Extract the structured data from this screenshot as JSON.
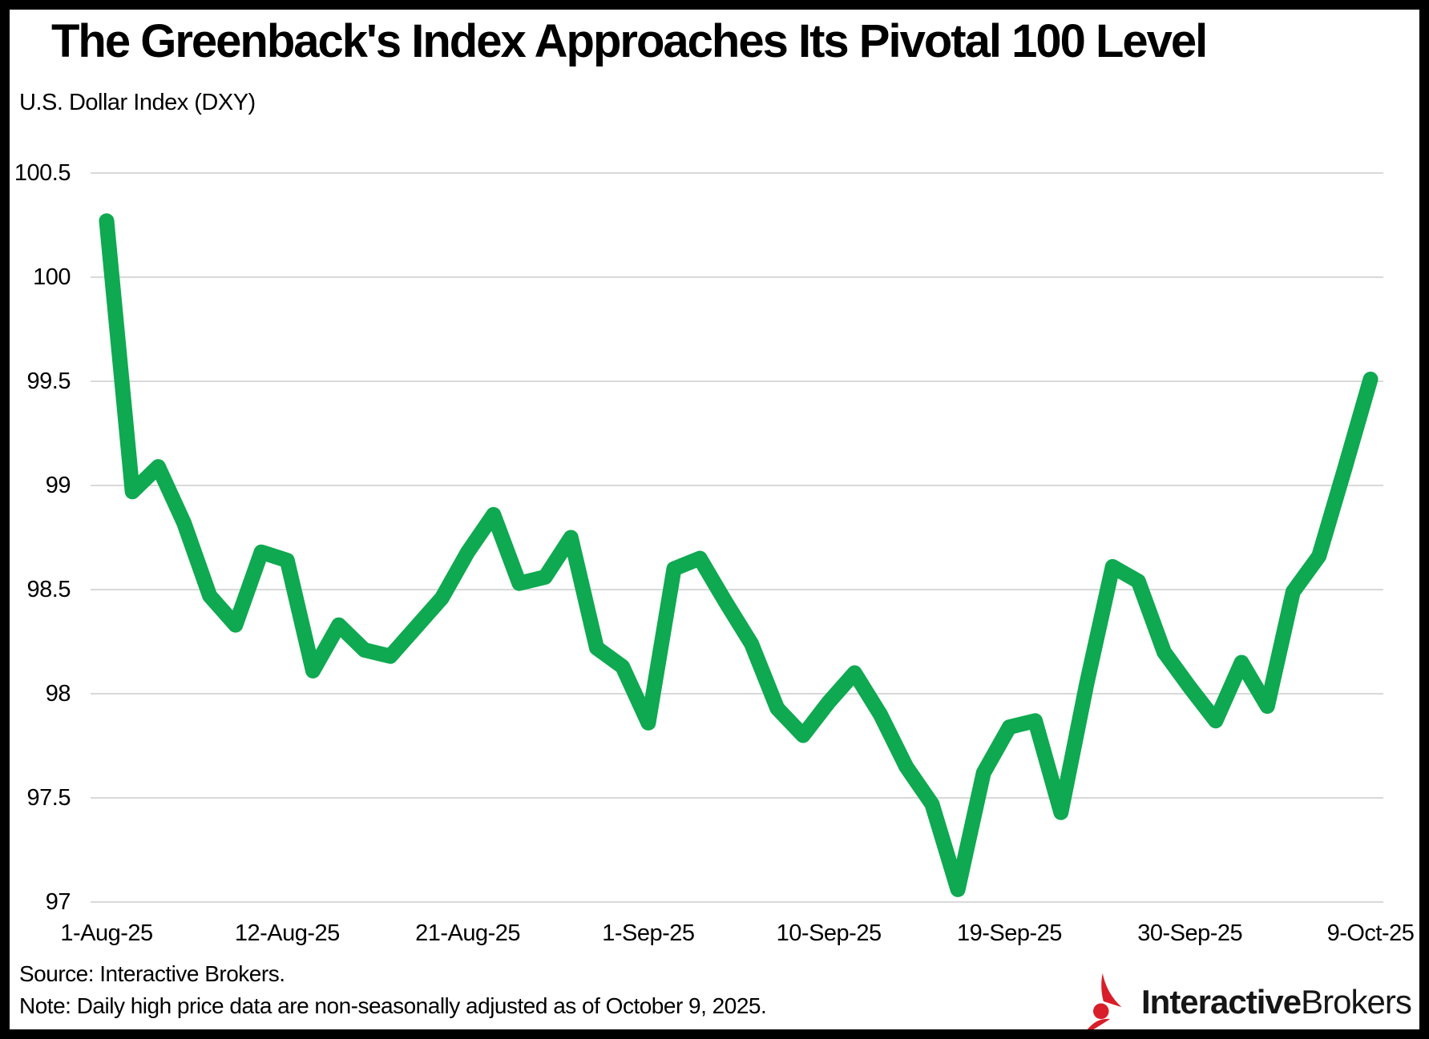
{
  "header": {
    "title": "The Greenback's Index Approaches Its Pivotal 100 Level",
    "subtitle": "U.S. Dollar Index (DXY)"
  },
  "footer": {
    "source": "Source: Interactive Brokers.",
    "note": "Note: Daily high price data are non-seasonally  adjusted as of October 9, 2025."
  },
  "logo": {
    "icon": "interactive-brokers-mark-icon",
    "brand_bold": "Interactive",
    "brand_regular": "Brokers",
    "mark_color": "#d81e2a",
    "text_color": "#161616"
  },
  "chart_data": {
    "type": "line",
    "title": "The Greenback's Index Approaches Its Pivotal 100 Level",
    "ylabel": "U.S. Dollar Index (DXY)",
    "xlabel": "",
    "ylim": [
      97,
      100.5
    ],
    "y_ticks": [
      100.5,
      100,
      99.5,
      99,
      98.5,
      98,
      97.5,
      97
    ],
    "x_tick_indices": [
      0,
      7,
      14,
      21,
      28,
      35,
      42,
      49
    ],
    "x_tick_labels": [
      "1-Aug-25",
      "12-Aug-25",
      "21-Aug-25",
      "1-Sep-25",
      "10-Sep-25",
      "19-Sep-25",
      "30-Sep-25",
      "9-Oct-25"
    ],
    "grid": true,
    "legend_position": "none",
    "line_color": "#0ea950",
    "gridline_color": "#d9d9d9",
    "series": [
      {
        "name": "DXY daily high",
        "x": [
          "1-Aug-25",
          "4-Aug-25",
          "5-Aug-25",
          "6-Aug-25",
          "7-Aug-25",
          "8-Aug-25",
          "11-Aug-25",
          "12-Aug-25",
          "13-Aug-25",
          "14-Aug-25",
          "15-Aug-25",
          "18-Aug-25",
          "19-Aug-25",
          "20-Aug-25",
          "21-Aug-25",
          "22-Aug-25",
          "25-Aug-25",
          "26-Aug-25",
          "27-Aug-25",
          "28-Aug-25",
          "29-Aug-25",
          "1-Sep-25",
          "2-Sep-25",
          "3-Sep-25",
          "4-Sep-25",
          "5-Sep-25",
          "8-Sep-25",
          "9-Sep-25",
          "10-Sep-25",
          "11-Sep-25",
          "12-Sep-25",
          "15-Sep-25",
          "16-Sep-25",
          "17-Sep-25",
          "18-Sep-25",
          "19-Sep-25",
          "22-Sep-25",
          "23-Sep-25",
          "24-Sep-25",
          "25-Sep-25",
          "26-Sep-25",
          "29-Sep-25",
          "30-Sep-25",
          "1-Oct-25",
          "2-Oct-25",
          "3-Oct-25",
          "6-Oct-25",
          "7-Oct-25",
          "8-Oct-25",
          "9-Oct-25"
        ],
        "values": [
          100.27,
          98.97,
          99.09,
          98.82,
          98.47,
          98.33,
          98.68,
          98.64,
          98.11,
          98.33,
          98.21,
          98.18,
          98.32,
          98.46,
          98.68,
          98.86,
          98.53,
          98.56,
          98.75,
          98.22,
          98.13,
          97.86,
          98.6,
          98.65,
          98.44,
          98.24,
          97.93,
          97.8,
          97.96,
          98.1,
          97.9,
          97.65,
          97.47,
          97.06,
          97.62,
          97.84,
          97.87,
          97.43,
          98.05,
          98.61,
          98.54,
          98.2,
          98.03,
          97.87,
          98.15,
          97.94,
          98.49,
          98.66,
          99.08,
          99.51
        ]
      }
    ]
  }
}
